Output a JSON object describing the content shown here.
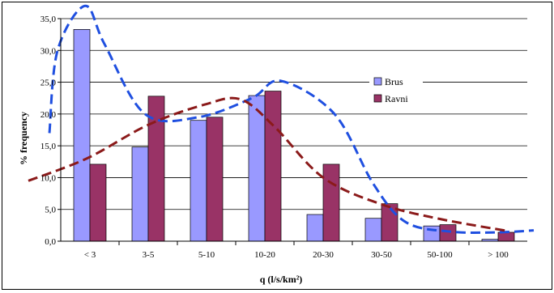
{
  "chart_data": {
    "type": "bar",
    "title": "",
    "xlabel": "q (l/s/km²)",
    "ylabel": "% frequency",
    "categories": [
      "< 3",
      "3-5",
      "5-10",
      "10-20",
      "20-30",
      "30-50",
      "50-100",
      "> 100"
    ],
    "series": [
      {
        "name": "Brus",
        "values": [
          33.3,
          14.8,
          19.0,
          22.9,
          4.2,
          3.6,
          2.4,
          0.3
        ],
        "color": "#9999ff"
      },
      {
        "name": "Ravni",
        "values": [
          12.1,
          22.8,
          19.5,
          23.6,
          12.1,
          5.9,
          2.6,
          1.4
        ],
        "color": "#993366"
      }
    ],
    "fit_curves": [
      {
        "series": "Brus",
        "color": "#1f4fe0",
        "style": "dashed"
      },
      {
        "series": "Ravni",
        "color": "#8b1a1a",
        "style": "dashed"
      }
    ],
    "ylim": [
      0,
      35
    ],
    "yticks": [
      "0,0",
      "5,0",
      "10,0",
      "15,0",
      "20,0",
      "25,0",
      "30,0",
      "35,0"
    ],
    "grid": true,
    "legend_position": "upper-right"
  }
}
